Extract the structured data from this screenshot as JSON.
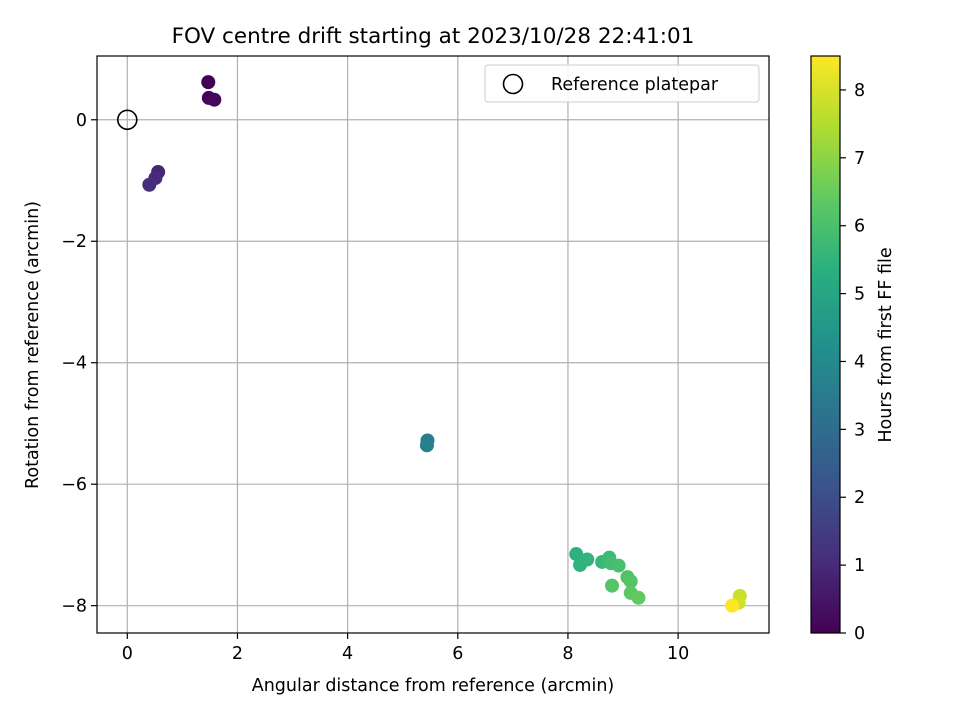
{
  "chart_data": {
    "type": "scatter",
    "title": "FOV centre drift starting at 2023/10/28 22:41:01",
    "xlabel": "Angular distance from reference (arcmin)",
    "ylabel": "Rotation from reference (arcmin)",
    "xlim": [
      -0.55,
      11.65
    ],
    "ylim": [
      -8.45,
      1.05
    ],
    "xticks": [
      0,
      2,
      4,
      6,
      8,
      10
    ],
    "yticks": [
      0,
      -2,
      -4,
      -6,
      -8
    ],
    "grid": true,
    "legend": {
      "placement": "top-right",
      "entries": [
        "Reference platepar"
      ]
    },
    "reference_point": {
      "x": 0,
      "y": 0
    },
    "colorbar": {
      "label": "Hours from first FF file",
      "range": [
        0,
        8.5
      ],
      "ticks": [
        0,
        1,
        2,
        3,
        4,
        5,
        6,
        7,
        8
      ],
      "colormap": "viridis"
    },
    "points": [
      {
        "x": 1.47,
        "y": 0.62,
        "hours": 0.0
      },
      {
        "x": 1.48,
        "y": 0.36,
        "hours": 0.1
      },
      {
        "x": 1.58,
        "y": 0.33,
        "hours": 0.2
      },
      {
        "x": 0.56,
        "y": -0.86,
        "hours": 0.9
      },
      {
        "x": 0.51,
        "y": -0.96,
        "hours": 1.0
      },
      {
        "x": 0.4,
        "y": -1.07,
        "hours": 1.1
      },
      {
        "x": 5.45,
        "y": -5.28,
        "hours": 3.6
      },
      {
        "x": 5.44,
        "y": -5.36,
        "hours": 3.7
      },
      {
        "x": 8.15,
        "y": -7.15,
        "hours": 5.4
      },
      {
        "x": 8.35,
        "y": -7.24,
        "hours": 5.5
      },
      {
        "x": 8.22,
        "y": -7.33,
        "hours": 5.5
      },
      {
        "x": 8.62,
        "y": -7.28,
        "hours": 5.7
      },
      {
        "x": 8.75,
        "y": -7.21,
        "hours": 5.8
      },
      {
        "x": 8.78,
        "y": -7.3,
        "hours": 5.9
      },
      {
        "x": 8.92,
        "y": -7.34,
        "hours": 6.0
      },
      {
        "x": 9.08,
        "y": -7.53,
        "hours": 6.1
      },
      {
        "x": 9.14,
        "y": -7.6,
        "hours": 6.2
      },
      {
        "x": 8.8,
        "y": -7.67,
        "hours": 6.2
      },
      {
        "x": 9.14,
        "y": -7.79,
        "hours": 6.3
      },
      {
        "x": 9.28,
        "y": -7.87,
        "hours": 6.4
      },
      {
        "x": 11.12,
        "y": -7.84,
        "hours": 7.8
      },
      {
        "x": 11.1,
        "y": -7.95,
        "hours": 7.9
      },
      {
        "x": 10.98,
        "y": -8.0,
        "hours": 8.5
      }
    ]
  }
}
